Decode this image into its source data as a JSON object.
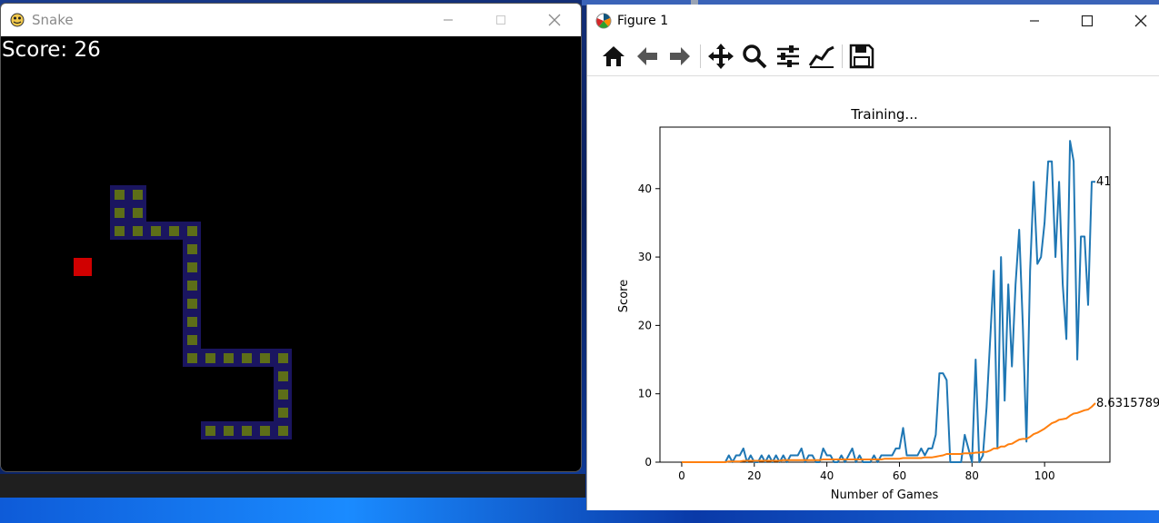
{
  "snake_window": {
    "title": "Snake",
    "score_text": "Score: 26",
    "colors": {
      "background": "#000000",
      "body_outer": "#1a1560",
      "body_inner": "#5d6e18",
      "food": "#d00000"
    },
    "icons": [
      "pygame-icon",
      "minimize-icon",
      "maximize-icon",
      "close-icon"
    ]
  },
  "figure_window": {
    "title": "Figure 1",
    "toolbar": [
      "home-icon",
      "back-icon",
      "forward-icon",
      "pan-icon",
      "zoom-icon",
      "subplots-icon",
      "customize-icon",
      "save-icon"
    ]
  },
  "chart_data": {
    "type": "line",
    "title": "Training...",
    "xlabel": "Number of Games",
    "ylabel": "Score",
    "xlim": [
      -6,
      118
    ],
    "ylim": [
      0,
      49
    ],
    "xticks": [
      "0",
      "20",
      "40",
      "60",
      "80",
      "100"
    ],
    "yticks": [
      "0",
      "10",
      "20",
      "30",
      "40"
    ],
    "grid": false,
    "series": [
      {
        "color": "#1f77b4",
        "values": [
          0,
          0,
          0,
          0,
          0,
          0,
          0,
          0,
          0,
          0,
          0,
          0,
          0,
          1,
          0,
          1,
          1,
          2,
          0,
          1,
          0,
          0,
          1,
          0,
          1,
          0,
          1,
          0,
          1,
          0,
          1,
          1,
          1,
          2,
          0,
          1,
          1,
          0,
          0,
          2,
          1,
          1,
          0,
          0,
          1,
          0,
          1,
          2,
          0,
          1,
          0,
          0,
          0,
          1,
          0,
          1,
          1,
          1,
          1,
          2,
          2,
          5,
          1,
          1,
          1,
          1,
          2,
          1,
          2,
          2,
          4,
          13,
          13,
          12,
          0,
          0,
          0,
          0,
          4,
          2,
          0,
          15,
          0,
          1,
          8,
          18,
          28,
          2,
          30,
          9,
          26,
          14,
          26,
          34,
          20,
          3,
          28,
          41,
          29,
          30,
          35,
          44,
          44,
          30,
          41,
          26,
          18,
          47,
          44,
          15,
          33,
          33,
          23,
          41,
          41
        ],
        "end_label": "41"
      },
      {
        "color": "#ff7f0e",
        "values": [
          0,
          0,
          0,
          0,
          0,
          0,
          0,
          0,
          0,
          0,
          0,
          0,
          0,
          0.1,
          0.1,
          0.1,
          0.1,
          0.2,
          0.2,
          0.2,
          0.2,
          0.2,
          0.2,
          0.2,
          0.2,
          0.2,
          0.2,
          0.2,
          0.3,
          0.3,
          0.3,
          0.3,
          0.3,
          0.3,
          0.3,
          0.3,
          0.3,
          0.3,
          0.3,
          0.4,
          0.4,
          0.4,
          0.4,
          0.4,
          0.4,
          0.4,
          0.4,
          0.4,
          0.4,
          0.4,
          0.4,
          0.4,
          0.4,
          0.4,
          0.4,
          0.4,
          0.5,
          0.5,
          0.5,
          0.5,
          0.5,
          0.6,
          0.6,
          0.6,
          0.6,
          0.6,
          0.6,
          0.7,
          0.7,
          0.7,
          0.8,
          0.9,
          1.0,
          1.2,
          1.2,
          1.2,
          1.2,
          1.2,
          1.3,
          1.3,
          1.3,
          1.4,
          1.4,
          1.5,
          1.5,
          1.7,
          2.0,
          2.0,
          2.3,
          2.3,
          2.6,
          2.7,
          3.0,
          3.3,
          3.4,
          3.4,
          3.7,
          4.1,
          4.3,
          4.6,
          4.9,
          5.3,
          5.7,
          5.9,
          6.2,
          6.3,
          6.4,
          6.8,
          7.1,
          7.2,
          7.4,
          7.6,
          7.7,
          8.1,
          8.63157894
        ],
        "end_label": "8.63157894"
      }
    ]
  }
}
